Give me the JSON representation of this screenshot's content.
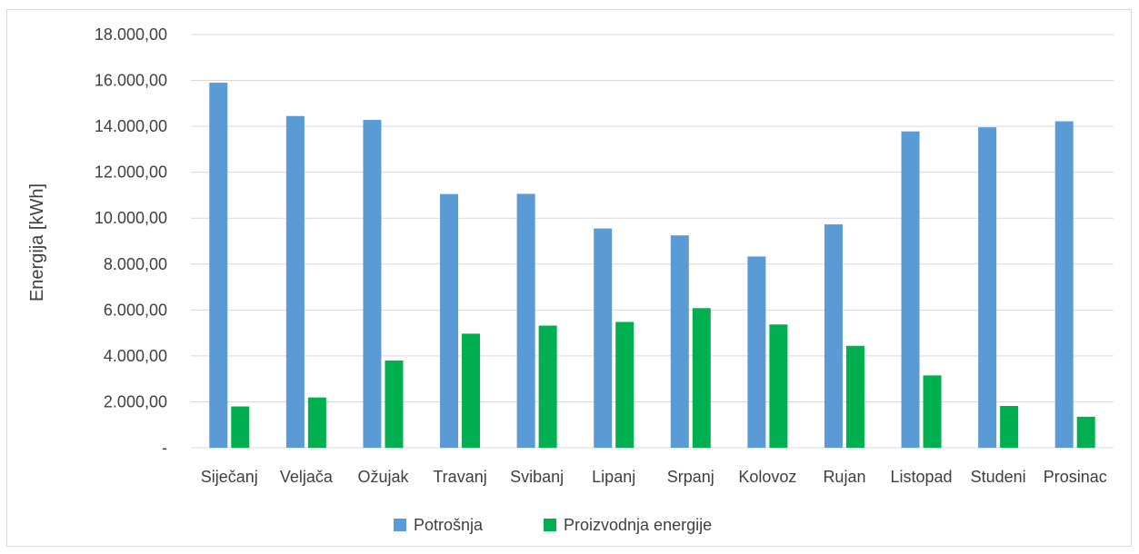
{
  "chart_data": {
    "type": "bar",
    "ylabel": "Energija [kWh]",
    "xlabel": "",
    "ylim": [
      0,
      18000
    ],
    "yticks": [
      0,
      2000,
      4000,
      6000,
      8000,
      10000,
      12000,
      14000,
      16000,
      18000
    ],
    "ytick_labels": [
      "-",
      "2.000,00",
      "4.000,00",
      "6.000,00",
      "8.000,00",
      "10.000,00",
      "12.000,00",
      "14.000,00",
      "16.000,00",
      "18.000,00"
    ],
    "grid": true,
    "legend_position": "bottom",
    "categories": [
      "Siječanj",
      "Veljača",
      "Ožujak",
      "Travanj",
      "Svibanj",
      "Lipanj",
      "Srpanj",
      "Kolovoz",
      "Rujan",
      "Listopad",
      "Studeni",
      "Prosinac"
    ],
    "series": [
      {
        "name": "Potrošnja",
        "color": "#5b9bd5",
        "values": [
          15900,
          14450,
          14280,
          11050,
          11060,
          9550,
          9250,
          8330,
          9730,
          13780,
          13960,
          14220
        ]
      },
      {
        "name": "Proizvodnja energije",
        "color": "#00b050",
        "values": [
          1800,
          2190,
          3800,
          4970,
          5320,
          5480,
          6080,
          5370,
          4440,
          3150,
          1820,
          1350
        ]
      }
    ]
  }
}
